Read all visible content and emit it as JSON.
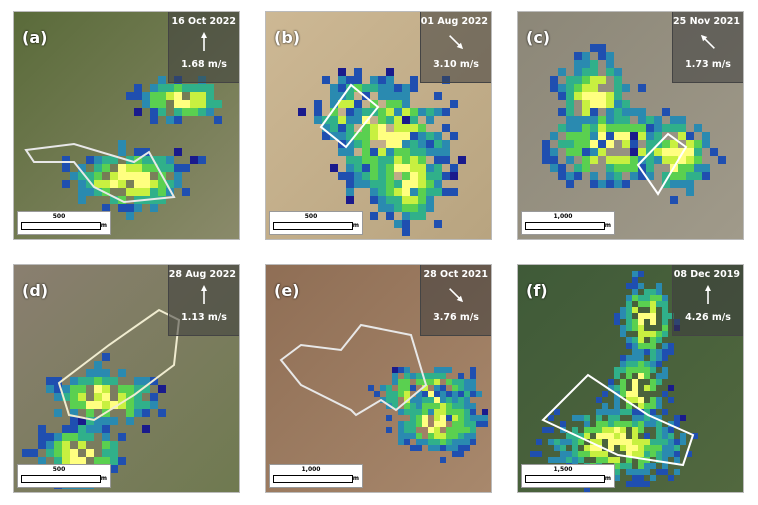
{
  "panels": [
    {
      "label": "(a)",
      "date": "16 Oct 2022",
      "wind_speed": "1.68 m/s",
      "wind_direction_deg": 0,
      "scale_value": "500",
      "scale_unit": "m",
      "background": [
        "#5a6b3a",
        "#8a8a6a"
      ],
      "outline": "#e8e8e8"
    },
    {
      "label": "(b)",
      "date": "01 Aug 2022",
      "wind_speed": "3.10 m/s",
      "wind_direction_deg": 135,
      "scale_value": "500",
      "scale_unit": "m",
      "background": [
        "#cdb894",
        "#b8a480"
      ],
      "outline": "#ffffff"
    },
    {
      "label": "(c)",
      "date": "25 Nov 2021",
      "wind_speed": "1.73 m/s",
      "wind_direction_deg": 315,
      "scale_value": "1,000",
      "scale_unit": "m",
      "background": [
        "#8c8778",
        "#a09a8a"
      ],
      "outline": "#ffffff"
    },
    {
      "label": "(d)",
      "date": "28 Aug 2022",
      "wind_speed": "1.13 m/s",
      "wind_direction_deg": 0,
      "scale_value": "500",
      "scale_unit": "m",
      "background": [
        "#8a7f70",
        "#6f7a50"
      ],
      "outline": "#f0ecd0"
    },
    {
      "label": "(e)",
      "date": "28 Oct 2021",
      "wind_speed": "3.76 m/s",
      "wind_direction_deg": 135,
      "scale_value": "1,000",
      "scale_unit": "m",
      "background": [
        "#8f6e55",
        "#a8886c"
      ],
      "outline": "#e8e8e8"
    },
    {
      "label": "(f)",
      "date": "08 Dec 2019",
      "wind_speed": "4.26 m/s",
      "wind_direction_deg": 0,
      "scale_value": "1,500",
      "scale_unit": "m",
      "background": [
        "#3f5a38",
        "#52683f"
      ],
      "outline": "#ffffff"
    }
  ],
  "colormap": [
    "#1a1a8c",
    "#1f4fb0",
    "#2a8ab0",
    "#30b08a",
    "#5ad050",
    "#c8f040",
    "#ffff80"
  ]
}
